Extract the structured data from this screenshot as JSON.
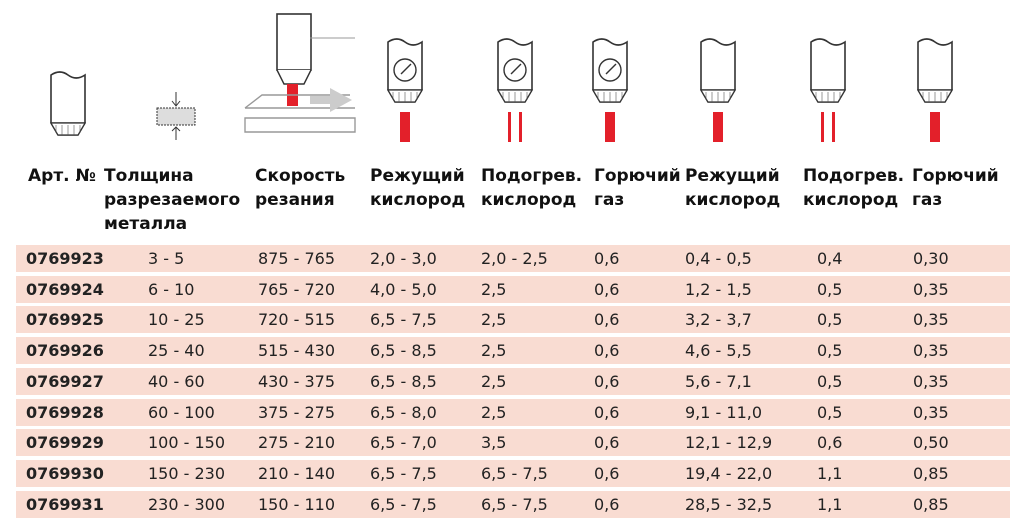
{
  "table": {
    "headers": [
      [
        "Арт. №"
      ],
      [
        "Толщина",
        "разрезаемого",
        "металла"
      ],
      [
        "Скорость",
        "резания"
      ],
      [
        "Режущий",
        "кислород"
      ],
      [
        "Подогрев.",
        "кислород"
      ],
      [
        "Горючий",
        "газ"
      ],
      [
        "Режущий",
        "кислород"
      ],
      [
        "Подогрев.",
        "кислород"
      ],
      [
        "Горючий",
        "газ"
      ]
    ],
    "rows": [
      [
        "0769923",
        "3 - 5",
        "875 - 765",
        "2,0 - 3,0",
        "2,0 - 2,5",
        "0,6",
        "0,4 - 0,5",
        "0,4",
        "0,30"
      ],
      [
        "0769924",
        "6 - 10",
        "765 - 720",
        "4,0 - 5,0",
        "2,5",
        "0,6",
        "1,2 - 1,5",
        "0,5",
        "0,35"
      ],
      [
        "0769925",
        "10 - 25",
        "720 - 515",
        "6,5 - 7,5",
        "2,5",
        "0,6",
        "3,2 - 3,7",
        "0,5",
        "0,35"
      ],
      [
        "0769926",
        "25 - 40",
        "515 - 430",
        "6,5 - 8,5",
        "2,5",
        "0,6",
        "4,6 - 5,5",
        "0,5",
        "0,35"
      ],
      [
        "0769927",
        "40 - 60",
        "430 - 375",
        "6,5 - 8,5",
        "2,5",
        "0,6",
        "5,6 - 7,1",
        "0,5",
        "0,35"
      ],
      [
        "0769928",
        "60 - 100",
        "375 - 275",
        "6,5 - 8,0",
        "2,5",
        "0,6",
        "9,1 - 11,0",
        "0,5",
        "0,35"
      ],
      [
        "0769929",
        "100 - 150",
        "275 - 210",
        "6,5 - 7,0",
        "3,5",
        "0,6",
        "12,1 - 12,9",
        "0,6",
        "0,50"
      ],
      [
        "0769930",
        "150 - 230",
        "210 - 140",
        "6,5 - 7,5",
        "6,5 - 7,5",
        "0,6",
        "19,4 - 22,0",
        "1,1",
        "0,85"
      ],
      [
        "0769931",
        "230 - 300",
        "150 - 110",
        "6,5 - 7,5",
        "6,5 - 7,5",
        "0,6",
        "28,5 - 32,5",
        "1,1",
        "0,85"
      ]
    ]
  }
}
